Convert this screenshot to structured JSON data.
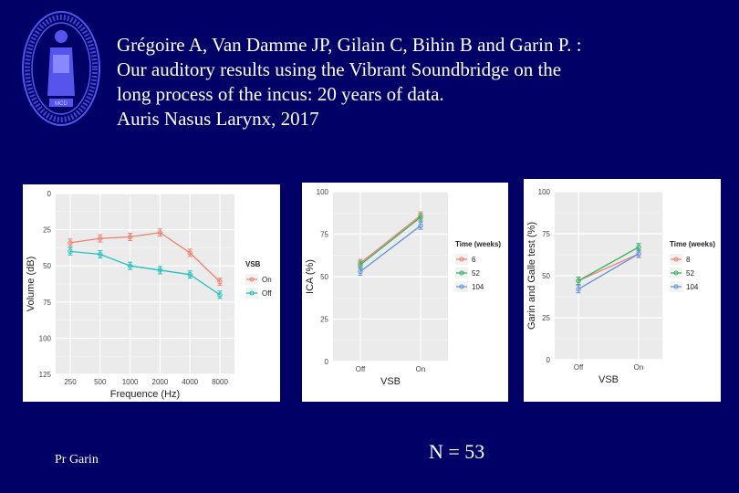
{
  "citation": {
    "line1": "Grégoire A, Van Damme JP, Gilain C, Bihin B and Garin P. :",
    "line2": "Our auditory results using the Vibrant Soundbridge on the",
    "line3": "long process of the incus: 20 years of data.",
    "line4": "Auris Nasus Larynx, 2017"
  },
  "seal": {
    "icon": "university-seal-icon",
    "ring_color": "#5555ee",
    "band_text": "MCD"
  },
  "footer": {
    "author": "Pr Garin",
    "n_label": "N = 53"
  },
  "chart_data": [
    {
      "type": "line",
      "title": "",
      "xlabel": "Frequence (Hz)",
      "ylabel": "Volume (dB)",
      "categories": [
        "250",
        "500",
        "1000",
        "2000",
        "4000",
        "8000"
      ],
      "y_reversed": true,
      "ylim": [
        0,
        125
      ],
      "yticks": [
        "0",
        "25",
        "50",
        "75",
        "100",
        "125"
      ],
      "legend_title": "VSB",
      "legend_position": "right",
      "grid": true,
      "series": [
        {
          "name": "On",
          "color": "#f08070",
          "values": [
            34,
            31,
            30,
            27,
            41,
            61
          ]
        },
        {
          "name": "Off",
          "color": "#20c0c0",
          "values": [
            40,
            42,
            50,
            53,
            56,
            70
          ]
        }
      ]
    },
    {
      "type": "line",
      "title": "",
      "xlabel": "VSB",
      "ylabel": "ICA (%)",
      "categories": [
        "Off",
        "On"
      ],
      "ylim": [
        0,
        100
      ],
      "yticks": [
        "0",
        "25",
        "50",
        "75",
        "100"
      ],
      "legend_title": "Time (weeks)",
      "legend_position": "right",
      "grid": true,
      "series": [
        {
          "name": "6",
          "color": "#f08070",
          "values": [
            58,
            86
          ]
        },
        {
          "name": "52",
          "color": "#30b060",
          "values": [
            57,
            85
          ]
        },
        {
          "name": "104",
          "color": "#6090e0",
          "values": [
            53,
            80
          ]
        }
      ]
    },
    {
      "type": "line",
      "title": "",
      "xlabel": "VSB",
      "ylabel": "Garin and Galle test (%)",
      "categories": [
        "Off",
        "On"
      ],
      "ylim": [
        0,
        100
      ],
      "yticks": [
        "0",
        "25",
        "50",
        "75",
        "100"
      ],
      "legend_title": "Time (weeks)",
      "legend_position": "right",
      "grid": true,
      "series": [
        {
          "name": "8",
          "color": "#f08070",
          "values": [
            47,
            63
          ]
        },
        {
          "name": "52",
          "color": "#30b060",
          "values": [
            47,
            67
          ]
        },
        {
          "name": "104",
          "color": "#6090e0",
          "values": [
            42,
            63
          ]
        }
      ]
    }
  ]
}
